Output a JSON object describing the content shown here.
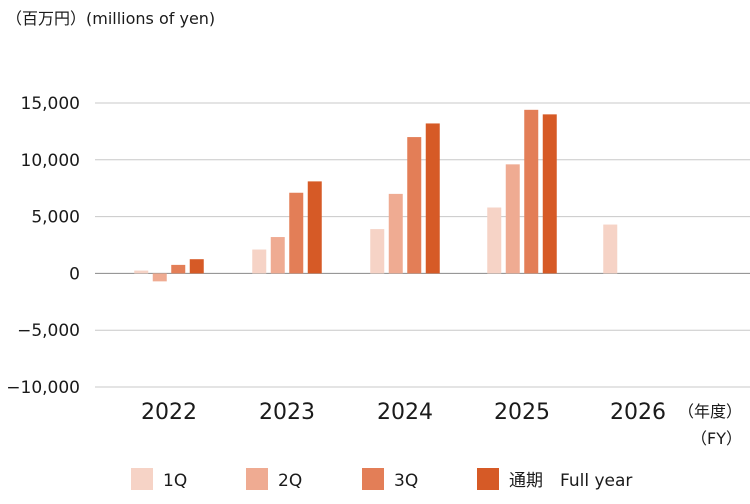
{
  "chart_data": {
    "type": "bar",
    "unit_label": "（百万円）(millions of yen)",
    "categories": [
      "2022",
      "2023",
      "2024",
      "2025",
      "2026"
    ],
    "fy_label_1": "（年度）",
    "fy_label_2": "（FY）",
    "ylim": [
      -10000,
      15000
    ],
    "yticks": [
      15000,
      10000,
      5000,
      0,
      -5000,
      -10000
    ],
    "ytick_labels": [
      "15,000",
      "10,000",
      "5,000",
      "0",
      "−5,000",
      "−10,000"
    ],
    "grid": true,
    "legend_position": "bottom",
    "series": [
      {
        "name": "1Q",
        "color": "#f6d3c6",
        "values": [
          250,
          2100,
          3900,
          5800,
          4300
        ]
      },
      {
        "name": "2Q",
        "color": "#efab92",
        "values": [
          -700,
          3200,
          7000,
          9600,
          null
        ]
      },
      {
        "name": "3Q",
        "color": "#e37e57",
        "values": [
          750,
          7100,
          12000,
          14400,
          null
        ]
      },
      {
        "name": "通期　Full year",
        "color": "#d65a26",
        "values": [
          1250,
          8100,
          13200,
          14000,
          null
        ]
      }
    ]
  }
}
